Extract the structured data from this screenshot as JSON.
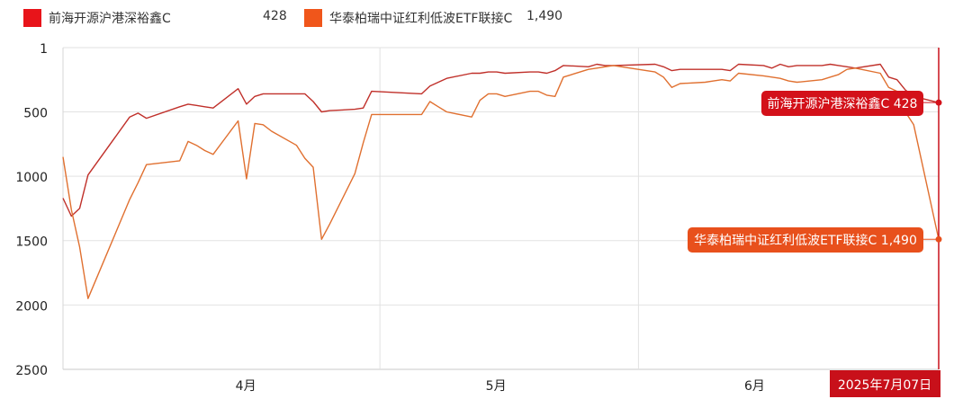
{
  "legend": {
    "items": [
      {
        "name": "前海开源沪港深裕鑫C",
        "value": "428",
        "color": "#e8141a"
      },
      {
        "name": "华泰柏瑞中证红利低波ETF联接C",
        "value": "1,490",
        "color": "#f0561b"
      }
    ]
  },
  "chart_data": {
    "type": "line",
    "y_axis": {
      "inverted": true,
      "min": 1,
      "max": 2500,
      "ticks": [
        1,
        500,
        1000,
        1500,
        2000,
        2500
      ],
      "label": ""
    },
    "x_axis": {
      "type": "date",
      "min": "2025-03-24",
      "max": "2025-07-07",
      "month_ticks": [
        "4月",
        "5月",
        "6月"
      ],
      "gridline_dates": [
        "2025-05-01",
        "2025-06-01"
      ],
      "label": ""
    },
    "grid": true,
    "crosshair": {
      "date": "2025-07-07",
      "label": "2025年7月07日"
    },
    "series": [
      {
        "name": "前海开源沪港深裕鑫C",
        "color": "#c0302a",
        "last_label": "前海开源沪港深裕鑫C 428",
        "points": [
          [
            "2025-03-24",
            1170
          ],
          [
            "2025-03-25",
            1310
          ],
          [
            "2025-03-26",
            1250
          ],
          [
            "2025-03-27",
            990
          ],
          [
            "2025-04-01",
            540
          ],
          [
            "2025-04-02",
            510
          ],
          [
            "2025-04-03",
            550
          ],
          [
            "2025-04-07",
            460
          ],
          [
            "2025-04-08",
            440
          ],
          [
            "2025-04-09",
            450
          ],
          [
            "2025-04-10",
            460
          ],
          [
            "2025-04-11",
            470
          ],
          [
            "2025-04-14",
            320
          ],
          [
            "2025-04-15",
            440
          ],
          [
            "2025-04-16",
            380
          ],
          [
            "2025-04-17",
            360
          ],
          [
            "2025-04-18",
            360
          ],
          [
            "2025-04-21",
            360
          ],
          [
            "2025-04-22",
            360
          ],
          [
            "2025-04-23",
            420
          ],
          [
            "2025-04-24",
            500
          ],
          [
            "2025-04-25",
            490
          ],
          [
            "2025-04-28",
            480
          ],
          [
            "2025-04-29",
            470
          ],
          [
            "2025-04-30",
            340
          ],
          [
            "2025-05-06",
            360
          ],
          [
            "2025-05-07",
            300
          ],
          [
            "2025-05-08",
            270
          ],
          [
            "2025-05-09",
            240
          ],
          [
            "2025-05-12",
            200
          ],
          [
            "2025-05-13",
            200
          ],
          [
            "2025-05-14",
            190
          ],
          [
            "2025-05-15",
            190
          ],
          [
            "2025-05-16",
            200
          ],
          [
            "2025-05-19",
            190
          ],
          [
            "2025-05-20",
            190
          ],
          [
            "2025-05-21",
            200
          ],
          [
            "2025-05-22",
            180
          ],
          [
            "2025-05-23",
            140
          ],
          [
            "2025-05-26",
            150
          ],
          [
            "2025-05-27",
            130
          ],
          [
            "2025-05-28",
            140
          ],
          [
            "2025-05-29",
            140
          ],
          [
            "2025-06-03",
            130
          ],
          [
            "2025-06-04",
            150
          ],
          [
            "2025-06-05",
            180
          ],
          [
            "2025-06-06",
            170
          ],
          [
            "2025-06-09",
            170
          ],
          [
            "2025-06-10",
            170
          ],
          [
            "2025-06-11",
            170
          ],
          [
            "2025-06-12",
            180
          ],
          [
            "2025-06-13",
            130
          ],
          [
            "2025-06-16",
            140
          ],
          [
            "2025-06-17",
            160
          ],
          [
            "2025-06-18",
            130
          ],
          [
            "2025-06-19",
            150
          ],
          [
            "2025-06-20",
            140
          ],
          [
            "2025-06-23",
            140
          ],
          [
            "2025-06-24",
            130
          ],
          [
            "2025-06-25",
            140
          ],
          [
            "2025-06-26",
            150
          ],
          [
            "2025-06-27",
            160
          ],
          [
            "2025-06-30",
            130
          ],
          [
            "2025-07-01",
            230
          ],
          [
            "2025-07-02",
            250
          ],
          [
            "2025-07-03",
            330
          ],
          [
            "2025-07-04",
            380
          ],
          [
            "2025-07-07",
            428
          ]
        ]
      },
      {
        "name": "华泰柏瑞中证红利低波ETF联接C",
        "color": "#e07030",
        "last_label": "华泰柏瑞中证红利低波ETF联接C 1,490",
        "points": [
          [
            "2025-03-24",
            850
          ],
          [
            "2025-03-25",
            1260
          ],
          [
            "2025-03-26",
            1550
          ],
          [
            "2025-03-27",
            1950
          ],
          [
            "2025-04-01",
            1180
          ],
          [
            "2025-04-02",
            1050
          ],
          [
            "2025-04-03",
            910
          ],
          [
            "2025-04-07",
            880
          ],
          [
            "2025-04-08",
            730
          ],
          [
            "2025-04-09",
            760
          ],
          [
            "2025-04-10",
            800
          ],
          [
            "2025-04-11",
            830
          ],
          [
            "2025-04-14",
            570
          ],
          [
            "2025-04-15",
            1020
          ],
          [
            "2025-04-16",
            590
          ],
          [
            "2025-04-17",
            600
          ],
          [
            "2025-04-18",
            650
          ],
          [
            "2025-04-21",
            760
          ],
          [
            "2025-04-22",
            860
          ],
          [
            "2025-04-23",
            930
          ],
          [
            "2025-04-24",
            1490
          ],
          [
            "2025-04-25",
            1370
          ],
          [
            "2025-04-28",
            980
          ],
          [
            "2025-04-29",
            740
          ],
          [
            "2025-04-30",
            520
          ],
          [
            "2025-05-06",
            520
          ],
          [
            "2025-05-07",
            420
          ],
          [
            "2025-05-08",
            460
          ],
          [
            "2025-05-09",
            500
          ],
          [
            "2025-05-12",
            540
          ],
          [
            "2025-05-13",
            410
          ],
          [
            "2025-05-14",
            360
          ],
          [
            "2025-05-15",
            360
          ],
          [
            "2025-05-16",
            380
          ],
          [
            "2025-05-19",
            340
          ],
          [
            "2025-05-20",
            340
          ],
          [
            "2025-05-21",
            370
          ],
          [
            "2025-05-22",
            380
          ],
          [
            "2025-05-23",
            230
          ],
          [
            "2025-05-26",
            170
          ],
          [
            "2025-05-27",
            160
          ],
          [
            "2025-05-28",
            150
          ],
          [
            "2025-05-29",
            140
          ],
          [
            "2025-06-03",
            190
          ],
          [
            "2025-06-04",
            230
          ],
          [
            "2025-06-05",
            310
          ],
          [
            "2025-06-06",
            280
          ],
          [
            "2025-06-09",
            270
          ],
          [
            "2025-06-10",
            260
          ],
          [
            "2025-06-11",
            250
          ],
          [
            "2025-06-12",
            260
          ],
          [
            "2025-06-13",
            200
          ],
          [
            "2025-06-16",
            220
          ],
          [
            "2025-06-17",
            230
          ],
          [
            "2025-06-18",
            240
          ],
          [
            "2025-06-19",
            260
          ],
          [
            "2025-06-20",
            270
          ],
          [
            "2025-06-23",
            250
          ],
          [
            "2025-06-24",
            230
          ],
          [
            "2025-06-25",
            210
          ],
          [
            "2025-06-26",
            170
          ],
          [
            "2025-06-27",
            160
          ],
          [
            "2025-06-30",
            200
          ],
          [
            "2025-07-01",
            310
          ],
          [
            "2025-07-02",
            340
          ],
          [
            "2025-07-03",
            500
          ],
          [
            "2025-07-04",
            600
          ],
          [
            "2025-07-07",
            1490
          ]
        ]
      }
    ]
  }
}
